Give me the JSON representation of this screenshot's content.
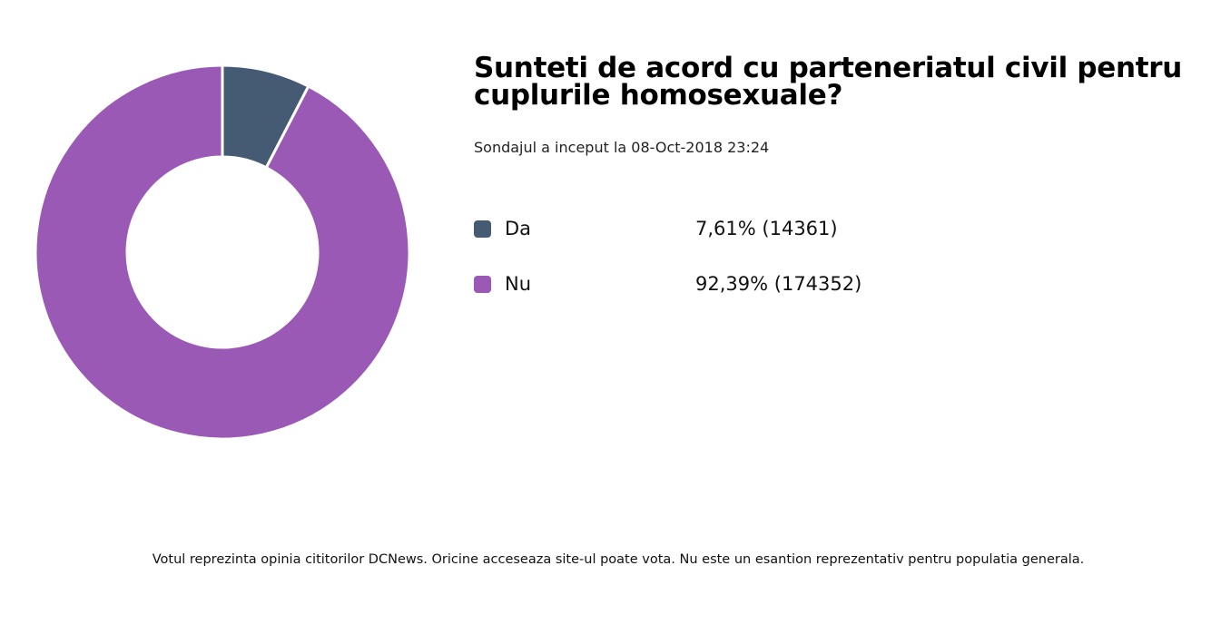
{
  "chart_data": {
    "type": "pie",
    "donut": true,
    "title": "Sunteti de acord cu parteneriatul civil pentru cuplurile homosexuale?",
    "subtitle": "Sondajul a inceput la 08-Oct-2018 23:24",
    "series": [
      {
        "name": "Da",
        "percent_label": "7,61%",
        "count_label": "(14361)",
        "value": 14361,
        "percent": 7.61,
        "color": "#455b73"
      },
      {
        "name": "Nu",
        "percent_label": "92,39%",
        "count_label": "(174352)",
        "value": 174352,
        "percent": 92.39,
        "color": "#9b59b6"
      }
    ],
    "legend_placement": "right"
  },
  "footer": "Votul reprezinta opinia cititorilor DCNews. Oricine acceseaza site-ul poate vota. Nu este un esantion reprezentativ pentru populatia generala."
}
